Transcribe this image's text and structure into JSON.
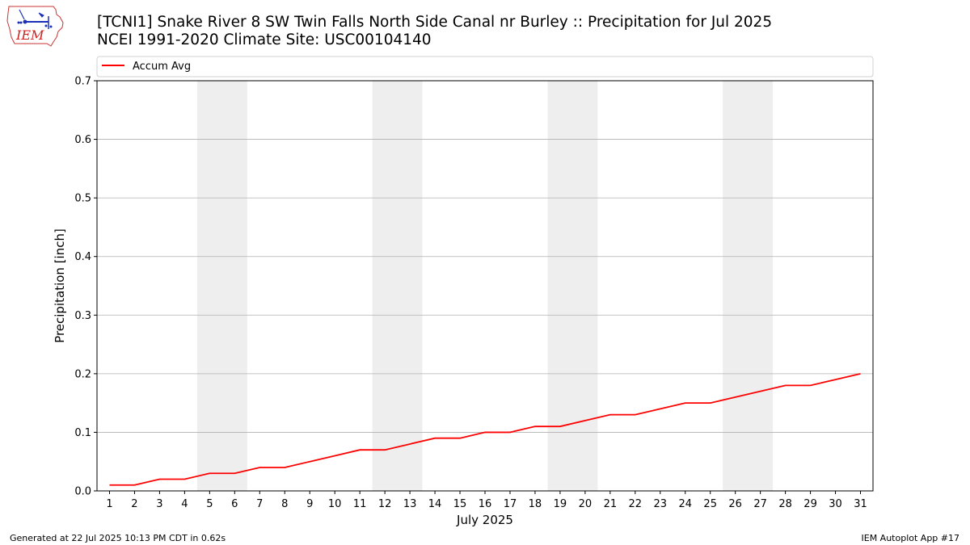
{
  "header": {
    "title_line1": "[TCNI1] Snake River 8 SW Twin Falls North Side Canal nr Burley :: Precipitation for Jul 2025",
    "title_line2": "NCEI 1991-2020 Climate Site: USC00104140"
  },
  "logo": {
    "text": "IEM",
    "icon": "iem-iowa-logo-icon"
  },
  "footer": {
    "generated": "Generated at 22 Jul 2025 10:13 PM CDT in 0.62s",
    "app": "IEM Autoplot App #17"
  },
  "colors": {
    "line": "#ff0000",
    "weekend_band": "#eeeeee",
    "grid": "#b0b0b0"
  },
  "chart_data": {
    "type": "line",
    "xlabel": "July 2025",
    "ylabel": "Precipitation [inch]",
    "xlim": [
      0.5,
      31.5
    ],
    "ylim": [
      0,
      0.7
    ],
    "yticks": [
      0.0,
      0.1,
      0.2,
      0.3,
      0.4,
      0.5,
      0.6,
      0.7
    ],
    "ytick_labels": [
      "0.0",
      "0.1",
      "0.2",
      "0.3",
      "0.4",
      "0.5",
      "0.6",
      "0.7"
    ],
    "xticks": [
      1,
      2,
      3,
      4,
      5,
      6,
      7,
      8,
      9,
      10,
      11,
      12,
      13,
      14,
      15,
      16,
      17,
      18,
      19,
      20,
      21,
      22,
      23,
      24,
      25,
      26,
      27,
      28,
      29,
      30,
      31
    ],
    "grid": "horizontal",
    "legend": {
      "placement": "top",
      "entries": [
        "Accum Avg"
      ]
    },
    "shaded_day_ranges": [
      [
        5,
        6
      ],
      [
        12,
        13
      ],
      [
        19,
        20
      ],
      [
        26,
        27
      ]
    ],
    "series": [
      {
        "name": "Accum Avg",
        "x": [
          1,
          2,
          3,
          4,
          5,
          6,
          7,
          8,
          9,
          10,
          11,
          12,
          13,
          14,
          15,
          16,
          17,
          18,
          19,
          20,
          21,
          22,
          23,
          24,
          25,
          26,
          27,
          28,
          29,
          30,
          31
        ],
        "values": [
          0.01,
          0.01,
          0.02,
          0.02,
          0.03,
          0.03,
          0.04,
          0.04,
          0.05,
          0.06,
          0.07,
          0.07,
          0.08,
          0.09,
          0.09,
          0.1,
          0.1,
          0.11,
          0.11,
          0.12,
          0.13,
          0.13,
          0.14,
          0.15,
          0.15,
          0.16,
          0.17,
          0.18,
          0.18,
          0.19,
          0.2
        ]
      }
    ]
  }
}
